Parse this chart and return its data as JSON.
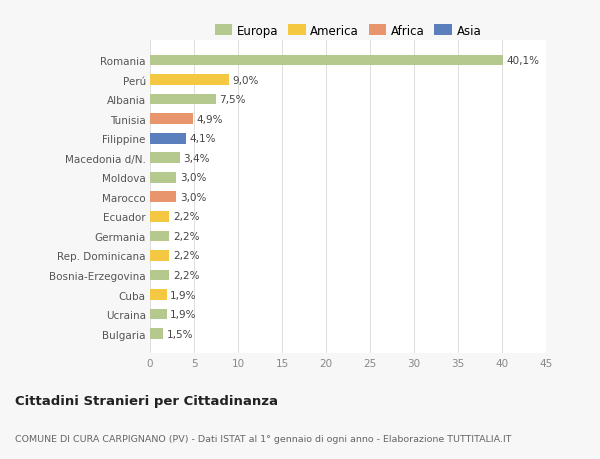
{
  "categories": [
    "Bulgaria",
    "Ucraina",
    "Cuba",
    "Bosnia-Erzegovina",
    "Rep. Dominicana",
    "Germania",
    "Ecuador",
    "Marocco",
    "Moldova",
    "Macedonia d/N.",
    "Filippine",
    "Tunisia",
    "Albania",
    "Perú",
    "Romania"
  ],
  "values": [
    1.5,
    1.9,
    1.9,
    2.2,
    2.2,
    2.2,
    2.2,
    3.0,
    3.0,
    3.4,
    4.1,
    4.9,
    7.5,
    9.0,
    40.1
  ],
  "colors": [
    "#b5c98e",
    "#b5c98e",
    "#f5c842",
    "#b5c98e",
    "#f5c842",
    "#b5c98e",
    "#f5c842",
    "#e8956d",
    "#b5c98e",
    "#b5c98e",
    "#5b7fbd",
    "#e8956d",
    "#b5c98e",
    "#f5c842",
    "#b5c98e"
  ],
  "labels": [
    "1,5%",
    "1,9%",
    "1,9%",
    "2,2%",
    "2,2%",
    "2,2%",
    "2,2%",
    "3,0%",
    "3,0%",
    "3,4%",
    "4,1%",
    "4,9%",
    "7,5%",
    "9,0%",
    "40,1%"
  ],
  "legend": [
    {
      "label": "Europa",
      "color": "#b5c98e"
    },
    {
      "label": "America",
      "color": "#f5c842"
    },
    {
      "label": "Africa",
      "color": "#e8956d"
    },
    {
      "label": "Asia",
      "color": "#5b7fbd"
    }
  ],
  "xlim": [
    0,
    45
  ],
  "xticks": [
    0,
    5,
    10,
    15,
    20,
    25,
    30,
    35,
    40,
    45
  ],
  "title": "Cittadini Stranieri per Cittadinanza",
  "subtitle": "COMUNE DI CURA CARPIGNANO (PV) - Dati ISTAT al 1° gennaio di ogni anno - Elaborazione TUTTITALIA.IT",
  "bg_color": "#f7f7f7",
  "bar_bg_color": "#ffffff"
}
